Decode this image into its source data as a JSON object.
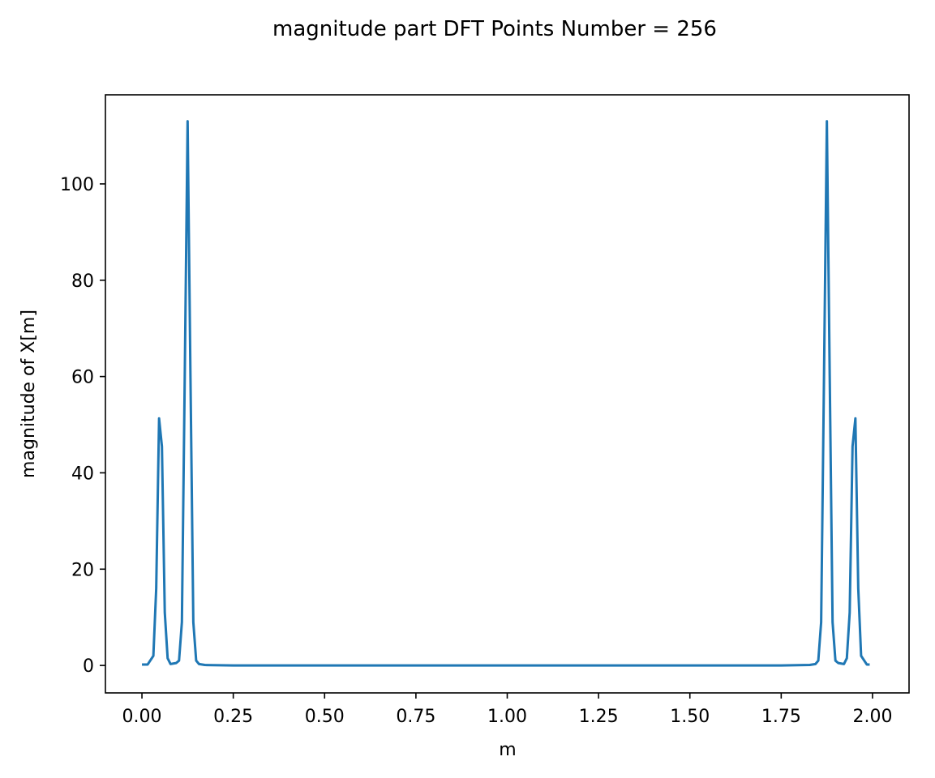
{
  "chart_data": {
    "type": "line",
    "title": "magnitude part DFT Points Number = 256",
    "xlabel": "m",
    "ylabel": "magnitude of X[m]",
    "xlim": [
      -0.1,
      2.1
    ],
    "ylim": [
      -5.7,
      118.5
    ],
    "xticks": [
      0.0,
      0.25,
      0.5,
      0.75,
      1.0,
      1.25,
      1.5,
      1.75,
      2.0
    ],
    "xtick_labels": [
      "0.00",
      "0.25",
      "0.50",
      "0.75",
      "1.00",
      "1.25",
      "1.50",
      "1.75",
      "2.00"
    ],
    "yticks": [
      0,
      20,
      40,
      60,
      80,
      100
    ],
    "ytick_labels": [
      "0",
      "20",
      "40",
      "60",
      "80",
      "100"
    ],
    "grid": false,
    "color": "#1f77b4",
    "series": [
      {
        "x": [
          0.0,
          0.015625,
          0.03125,
          0.0390625,
          0.046875,
          0.0546875,
          0.0625,
          0.0703125,
          0.078125,
          0.09375,
          0.1015625,
          0.109375,
          0.1171875,
          0.125,
          0.1328125,
          0.140625,
          0.1484375,
          0.15625,
          0.171875,
          0.25,
          0.5,
          0.75,
          1.0,
          1.25,
          1.5,
          1.75,
          1.828125,
          1.84375,
          1.8515625,
          1.859375,
          1.8671875,
          1.875,
          1.8828125,
          1.890625,
          1.8984375,
          1.90625,
          1.921875,
          1.9296875,
          1.9375,
          1.9453125,
          1.953125,
          1.9609375,
          1.96875,
          1.984375,
          1.9921875
        ],
        "y": [
          0.2,
          0.2,
          2.0,
          16.0,
          51.3,
          45.5,
          11.0,
          1.5,
          0.3,
          0.5,
          1.0,
          9.0,
          60.0,
          113.0,
          60.0,
          9.0,
          1.0,
          0.3,
          0.1,
          0.0,
          0.0,
          0.0,
          0.0,
          0.0,
          0.0,
          0.0,
          0.1,
          0.3,
          1.0,
          9.0,
          60.0,
          113.0,
          60.0,
          9.0,
          1.0,
          0.5,
          0.3,
          1.5,
          11.0,
          45.5,
          51.3,
          16.0,
          2.0,
          0.2,
          0.2
        ]
      }
    ]
  }
}
